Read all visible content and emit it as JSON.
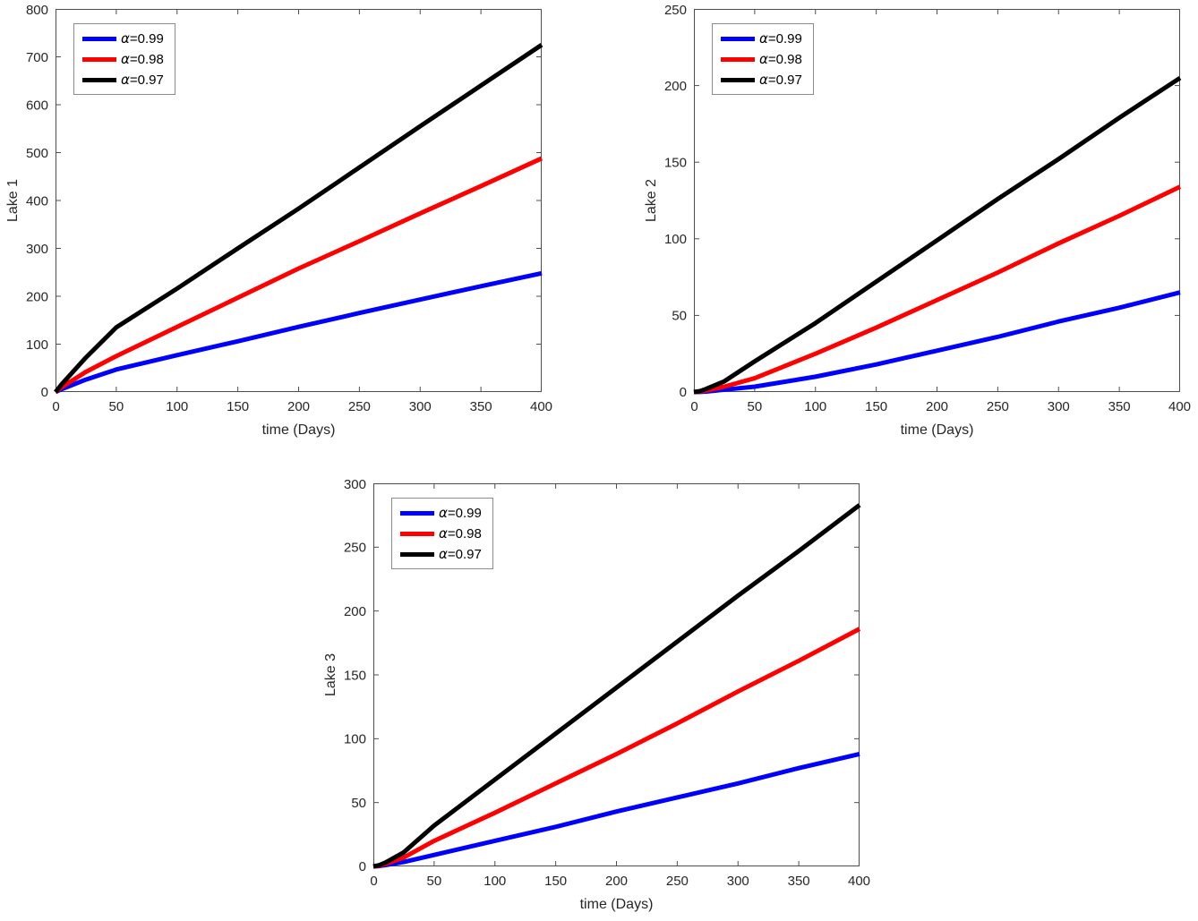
{
  "figure": {
    "background": "#ffffff"
  },
  "chart_data": [
    {
      "type": "line",
      "title": "",
      "ylabel": "Lake 1",
      "xlabel": "time (Days)",
      "xlim": [
        0,
        400
      ],
      "ylim": [
        0,
        800
      ],
      "xticks": [
        0,
        50,
        100,
        150,
        200,
        250,
        300,
        350,
        400
      ],
      "yticks": [
        0,
        100,
        200,
        300,
        400,
        500,
        600,
        700,
        800
      ],
      "grid": false,
      "legend_position": "top-left",
      "x": [
        0,
        5,
        10,
        25,
        50,
        100,
        150,
        200,
        250,
        300,
        350,
        400
      ],
      "series": [
        {
          "name": "α=0.99",
          "color": "#0000FF",
          "values": [
            0,
            6,
            11,
            26,
            47,
            77,
            106,
            136,
            165,
            193,
            221,
            248
          ]
        },
        {
          "name": "α=0.98",
          "color": "#FF0000",
          "values": [
            0,
            10,
            18,
            42,
            75,
            136,
            197,
            258,
            315,
            373,
            430,
            488
          ]
        },
        {
          "name": "α=0.97",
          "color": "#000000",
          "values": [
            0,
            16,
            30,
            72,
            135,
            216,
            300,
            383,
            469,
            555,
            640,
            725
          ]
        }
      ]
    },
    {
      "type": "line",
      "title": "",
      "ylabel": "Lake 2",
      "xlabel": "time (Days)",
      "xlim": [
        0,
        400
      ],
      "ylim": [
        0,
        250
      ],
      "xticks": [
        0,
        50,
        100,
        150,
        200,
        250,
        300,
        350,
        400
      ],
      "yticks": [
        0,
        50,
        100,
        150,
        200,
        250
      ],
      "grid": false,
      "legend_position": "top-left",
      "x": [
        0,
        5,
        10,
        25,
        50,
        100,
        150,
        200,
        250,
        300,
        350,
        400
      ],
      "series": [
        {
          "name": "α=0.99",
          "color": "#0000FF",
          "values": [
            0,
            0.1,
            0.3,
            1.5,
            3.5,
            10,
            18,
            27,
            36,
            46,
            55,
            65
          ]
        },
        {
          "name": "α=0.98",
          "color": "#FF0000",
          "values": [
            0,
            0.3,
            1,
            3.5,
            9,
            25,
            42,
            60,
            78,
            97,
            115,
            134
          ]
        },
        {
          "name": "α=0.97",
          "color": "#000000",
          "values": [
            0,
            0.6,
            2,
            7,
            20,
            45,
            72,
            99,
            126,
            152,
            179,
            205
          ]
        }
      ]
    },
    {
      "type": "line",
      "title": "",
      "ylabel": "Lake 3",
      "xlabel": "time (Days)",
      "xlim": [
        0,
        400
      ],
      "ylim": [
        0,
        300
      ],
      "xticks": [
        0,
        50,
        100,
        150,
        200,
        250,
        300,
        350,
        400
      ],
      "yticks": [
        0,
        50,
        100,
        150,
        200,
        250,
        300
      ],
      "grid": false,
      "legend_position": "top-left",
      "x": [
        0,
        5,
        10,
        25,
        50,
        100,
        150,
        200,
        250,
        300,
        350,
        400
      ],
      "series": [
        {
          "name": "α=0.99",
          "color": "#0000FF",
          "values": [
            0,
            0.3,
            1,
            3.5,
            9,
            20,
            31,
            43,
            54,
            65,
            77,
            88
          ]
        },
        {
          "name": "α=0.98",
          "color": "#FF0000",
          "values": [
            0,
            0.6,
            2,
            7,
            20,
            42,
            65,
            88,
            112,
            137,
            161,
            186
          ]
        },
        {
          "name": "α=0.97",
          "color": "#000000",
          "values": [
            0,
            1,
            3,
            11,
            32,
            68,
            104,
            140,
            176,
            212,
            247,
            283
          ]
        }
      ]
    }
  ],
  "style": {
    "axis_color": "#4d4d4d",
    "tick_label_color": "#262626",
    "line_width": 5,
    "tick_length": 6
  }
}
